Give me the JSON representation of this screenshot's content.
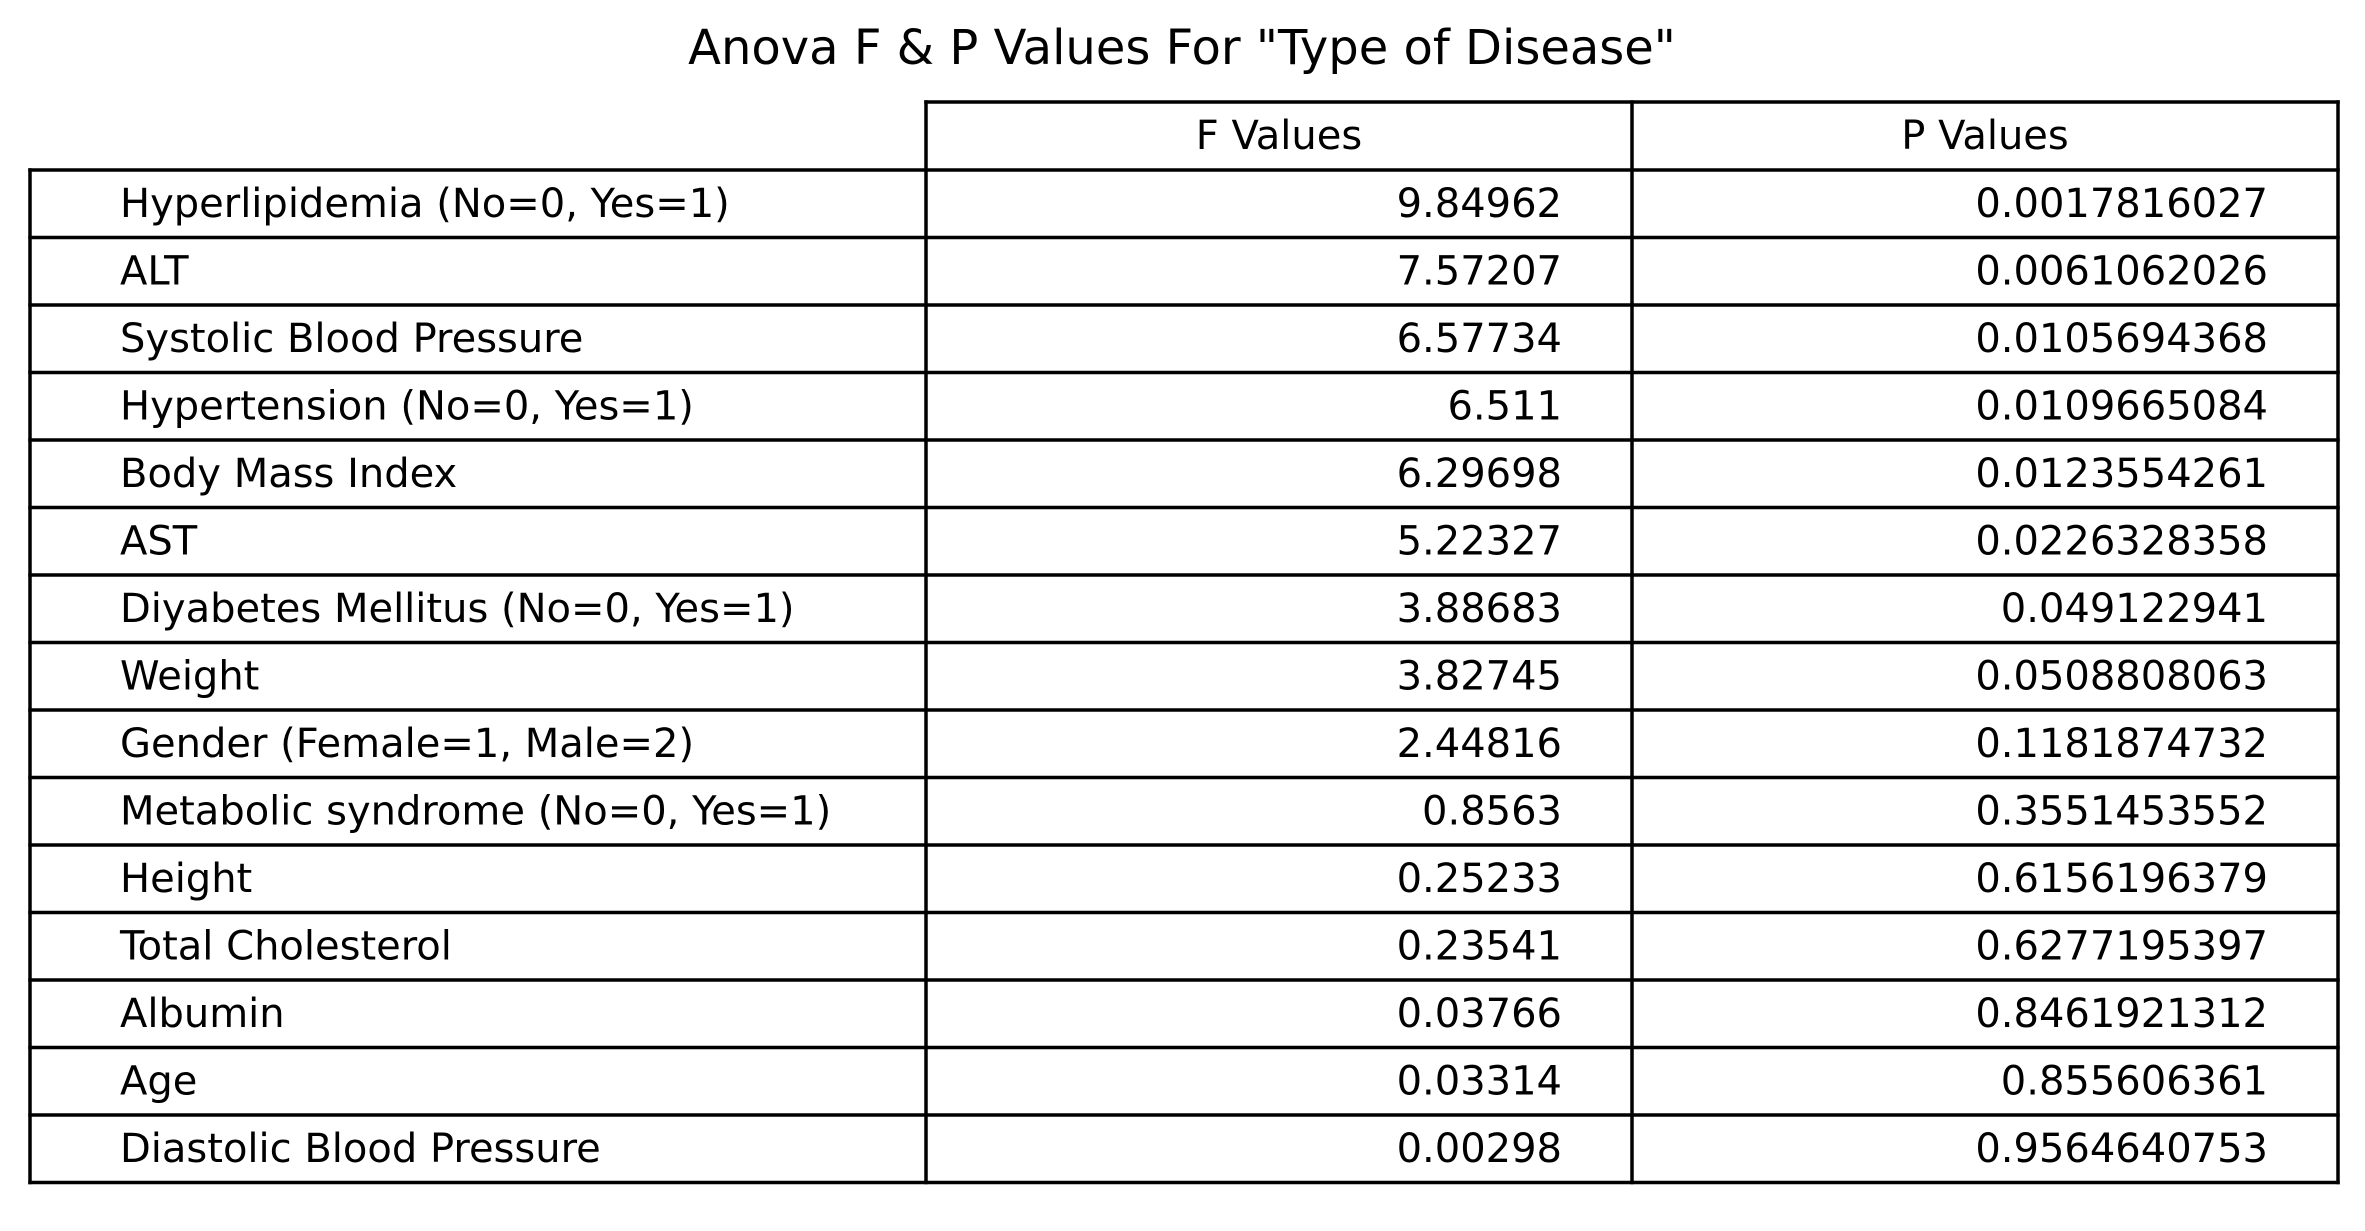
{
  "chart_data": {
    "type": "table",
    "title": "Anova F & P Values For \"Type of Disease\"",
    "columns": [
      "F Values",
      "P Values"
    ],
    "rows": [
      {
        "label": "Hyperlipidemia (No=0, Yes=1)",
        "f": "9.84962",
        "p": "0.0017816027"
      },
      {
        "label": "ALT",
        "f": "7.57207",
        "p": "0.0061062026"
      },
      {
        "label": "Systolic Blood Pressure",
        "f": "6.57734",
        "p": "0.0105694368"
      },
      {
        "label": "Hypertension (No=0, Yes=1)",
        "f": "6.511",
        "p": "0.0109665084"
      },
      {
        "label": "Body Mass Index",
        "f": "6.29698",
        "p": "0.0123554261"
      },
      {
        "label": "AST",
        "f": "5.22327",
        "p": "0.0226328358"
      },
      {
        "label": "Diyabetes Mellitus (No=0, Yes=1)",
        "f": "3.88683",
        "p": "0.049122941"
      },
      {
        "label": "Weight",
        "f": "3.82745",
        "p": "0.0508808063"
      },
      {
        "label": "Gender (Female=1, Male=2)",
        "f": "2.44816",
        "p": "0.1181874732"
      },
      {
        "label": "Metabolic syndrome (No=0, Yes=1)",
        "f": "0.8563",
        "p": "0.3551453552"
      },
      {
        "label": "Height",
        "f": "0.25233",
        "p": "0.6156196379"
      },
      {
        "label": "Total Cholesterol",
        "f": "0.23541",
        "p": "0.6277195397"
      },
      {
        "label": "Albumin",
        "f": "0.03766",
        "p": "0.8461921312"
      },
      {
        "label": "Age",
        "f": "0.03314",
        "p": "0.855606361"
      },
      {
        "label": "Diastolic Blood Pressure",
        "f": "0.00298",
        "p": "0.9564640753"
      }
    ]
  }
}
